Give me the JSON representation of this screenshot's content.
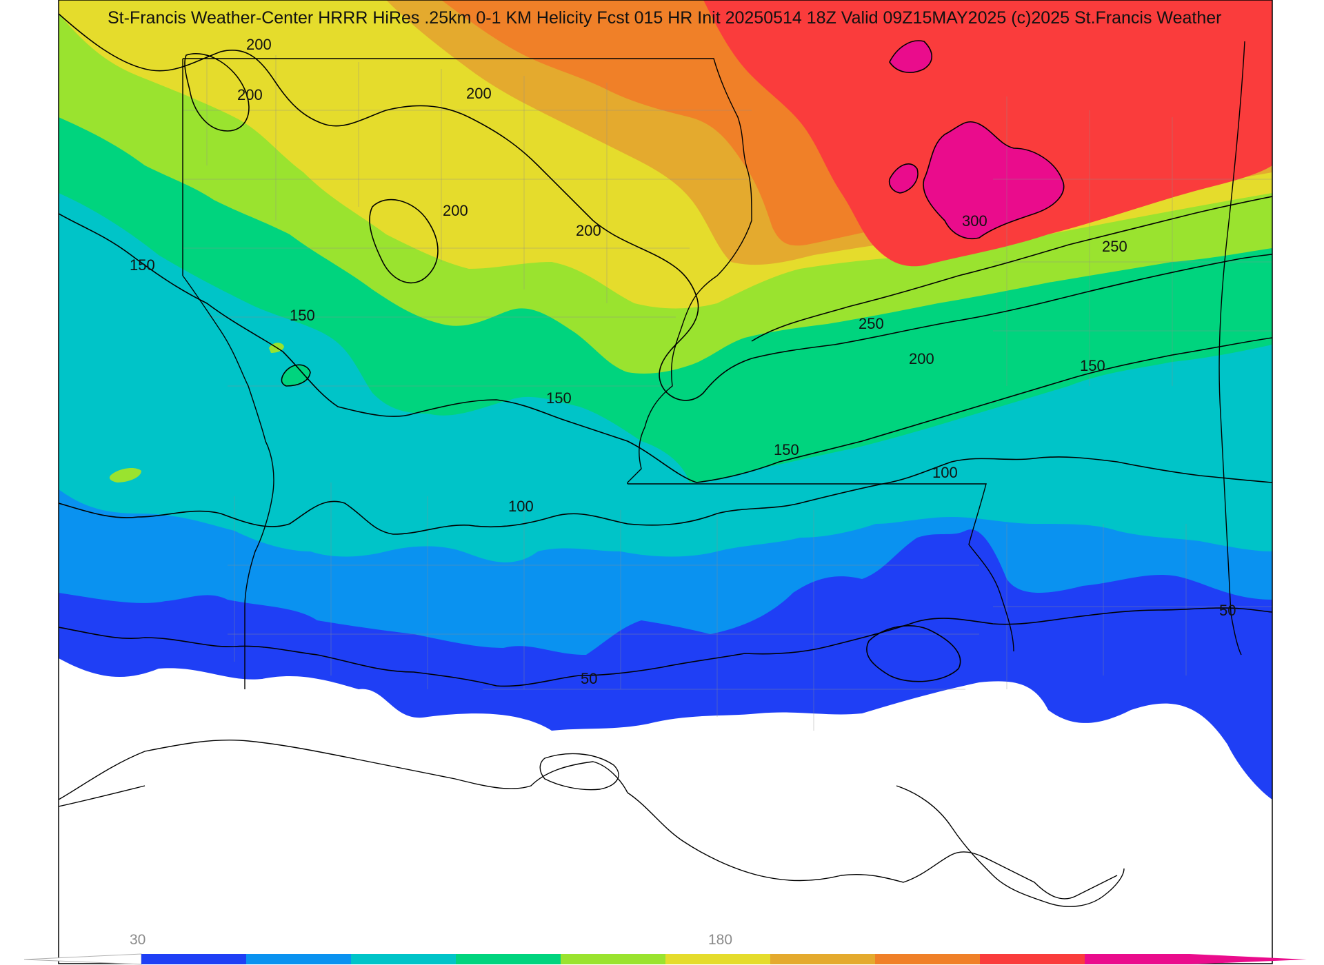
{
  "title": "St-Francis Weather-Center HRRR HiRes .25km 0-1 KM Helicity Fcst 015 HR Init 20250514 18Z  Valid 09Z15MAY2025    (c)2025 St.Francis Weather",
  "colorbar": {
    "tick_labels": [
      "30",
      "180"
    ],
    "colors": [
      "#1f3ff5",
      "#0a92f0",
      "#00c4c8",
      "#00d47e",
      "#9ae32f",
      "#e5dc2c",
      "#e4aa2e",
      "#f08028",
      "#fa3c3c",
      "#ea0c8c"
    ],
    "low_color": "#ffffff"
  },
  "contour_labels": [
    "200",
    "200",
    "200",
    "200",
    "200",
    "150",
    "150",
    "150",
    "100",
    "100",
    "50",
    "50",
    "300",
    "250",
    "250",
    "200",
    "150",
    "150"
  ],
  "colors": {
    "frame": "#000000",
    "border_lines": "#000000",
    "county_lines": "#8c8c8c"
  }
}
